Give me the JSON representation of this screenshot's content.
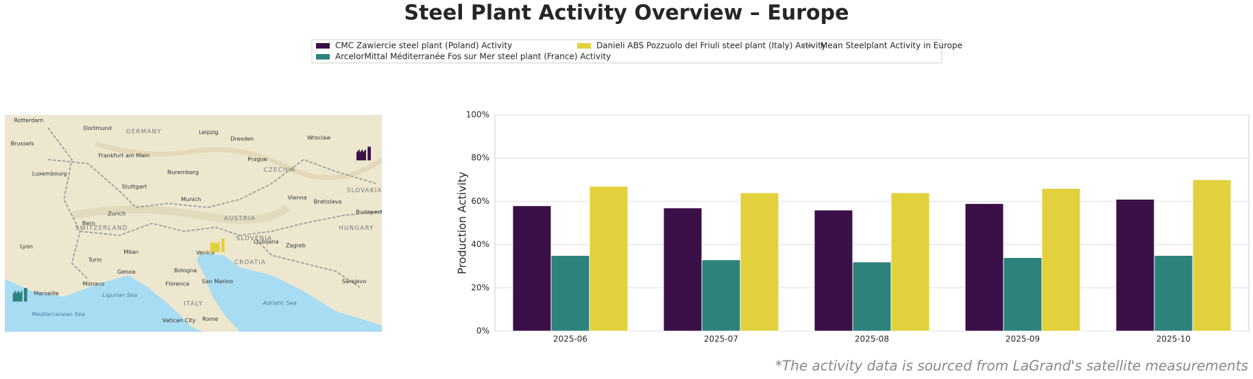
{
  "title": "Steel Plant Activity Overview – Europe",
  "footnote": "*The activity data is sourced from LaGrand's satellite measurements",
  "map": {
    "labels": [
      "GERMANY",
      "CZECHIA",
      "AUSTRIA",
      "SWITZERLAND",
      "SLOVENIA",
      "CROATIA",
      "ITALY",
      "HUNGARY",
      "SLOVAKIA",
      "Munich",
      "Vienna",
      "Prague",
      "Milan",
      "Venice",
      "Zagreb",
      "Marseille",
      "Monaco",
      "Rome",
      "Budapest",
      "Ljubljana",
      "Frankfurt am Main",
      "Luxembourg",
      "Brussels",
      "Wroclaw",
      "Leipzig",
      "Dresden",
      "Nuremberg",
      "Stuttgart",
      "Bern",
      "Zurich",
      "Lyon",
      "Turin",
      "Genoa",
      "Bologna",
      "Florence",
      "San Marino",
      "Sarajevo",
      "Bratislava",
      "Rotterdam",
      "Dortmund",
      "Mediterranean Sea",
      "Ligurian Sea",
      "Adriatic Sea",
      "Vatican City"
    ]
  },
  "chart_data": {
    "type": "bar",
    "y_label": "Production Activity",
    "categories": [
      "2025-06",
      "2025-07",
      "2025-08",
      "2025-09",
      "2025-10"
    ],
    "series": [
      {
        "name": "CMC Zawiercie steel plant (Poland) Activity",
        "color": "#3b0f48",
        "values": [
          58,
          57,
          56,
          59,
          61
        ]
      },
      {
        "name": "ArcelorMittal Méditerranée Fos sur Mer steel plant (France) Activity",
        "color": "#2e827c",
        "values": [
          35,
          33,
          32,
          34,
          35
        ]
      },
      {
        "name": "Danieli ABS Pozzuolo del Friuli steel plant (Italy) Activity",
        "color": "#e2d03c",
        "values": [
          67,
          64,
          64,
          66,
          70
        ]
      }
    ],
    "reference_line": {
      "name": "Mean Steelplant Activity in Europe",
      "color": "#888888",
      "style": "dashed"
    },
    "ylim": [
      0,
      100
    ],
    "yticks": [
      {
        "value": 0,
        "label": "0%"
      },
      {
        "value": 20,
        "label": "20%"
      },
      {
        "value": 40,
        "label": "40%"
      },
      {
        "value": 60,
        "label": "60%"
      },
      {
        "value": 80,
        "label": "80%"
      },
      {
        "value": 100,
        "label": "100%"
      }
    ],
    "grid": true
  }
}
